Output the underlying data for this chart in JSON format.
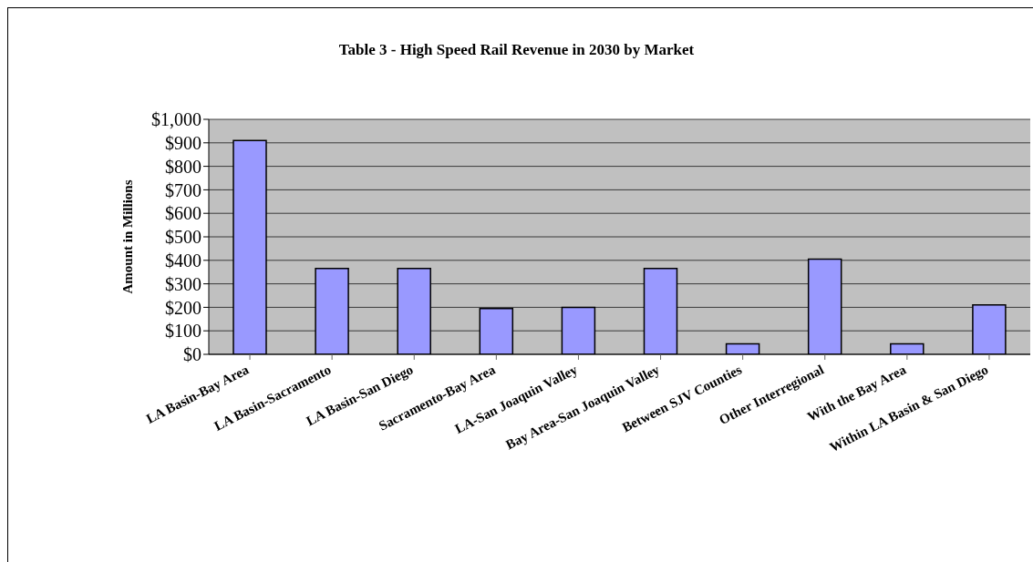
{
  "chart_data": {
    "type": "bar",
    "title": "Table 3 - High Speed Rail Revenue in 2030 by Market",
    "ylabel": "Amount in Millions",
    "categories": [
      "LA Basin-Bay Area",
      "LA Basin-Sacramento",
      "LA Basin-San Diego",
      "Sacramento-Bay Area",
      "LA-San Joaquin Valley",
      "Bay Area-San Joaquin Valley",
      "Between SJV Counties",
      "Other Interregional",
      "With the Bay Area",
      "Within LA Basin & San Diego"
    ],
    "values": [
      910,
      365,
      365,
      195,
      200,
      365,
      45,
      405,
      45,
      210
    ],
    "color": "#9999ff",
    "ylim": [
      0,
      1000
    ],
    "yticks": [
      {
        "value": 0,
        "label": "$0"
      },
      {
        "value": 100,
        "label": "$100"
      },
      {
        "value": 200,
        "label": "$200"
      },
      {
        "value": 300,
        "label": "$300"
      },
      {
        "value": 400,
        "label": "$400"
      },
      {
        "value": 500,
        "label": "$500"
      },
      {
        "value": 600,
        "label": "$600"
      },
      {
        "value": 700,
        "label": "$700"
      },
      {
        "value": 800,
        "label": "$800"
      },
      {
        "value": 900,
        "label": "$900"
      },
      {
        "value": 1000,
        "label": "$1,000"
      }
    ],
    "grid": "y",
    "legend": false
  }
}
